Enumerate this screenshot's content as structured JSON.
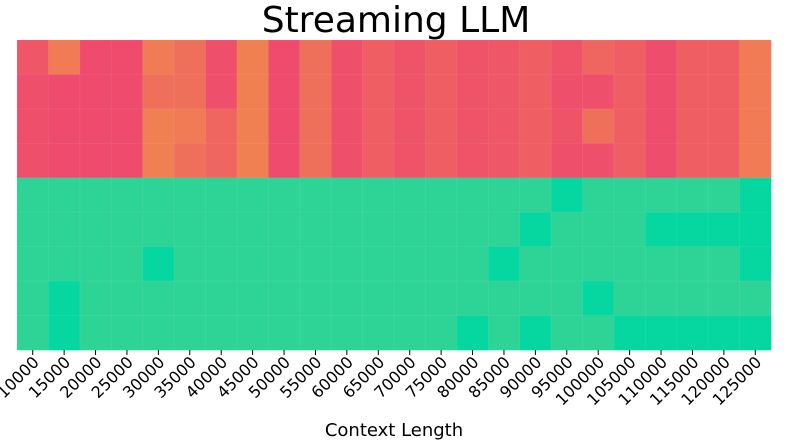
{
  "chart_data": {
    "type": "heatmap",
    "title": "Streaming LLM",
    "xlabel": "Context Length",
    "x": [
      "10000",
      "15000",
      "20000",
      "25000",
      "30000",
      "35000",
      "40000",
      "45000",
      "50000",
      "55000",
      "60000",
      "65000",
      "70000",
      "75000",
      "80000",
      "85000",
      "90000",
      "95000",
      "100000",
      "105000",
      "110000",
      "115000",
      "120000",
      "125000"
    ],
    "colorscale": [
      [
        0,
        "#ee4470"
      ],
      [
        0.3,
        "#f0864f"
      ],
      [
        0.7,
        "#2ed396"
      ],
      [
        1,
        "#06d6a0"
      ]
    ],
    "z": [
      [
        0.08,
        0.25,
        0.03,
        0.03,
        0.25,
        0.2,
        0.05,
        0.27,
        0.03,
        0.2,
        0.05,
        0.12,
        0.07,
        0.12,
        0.07,
        0.08,
        0.12,
        0.07,
        0.15,
        0.12,
        0.04,
        0.12,
        0.12,
        0.25
      ],
      [
        0.05,
        0.03,
        0.03,
        0.03,
        0.2,
        0.2,
        0.05,
        0.27,
        0.03,
        0.2,
        0.05,
        0.12,
        0.07,
        0.12,
        0.07,
        0.08,
        0.12,
        0.05,
        0.05,
        0.12,
        0.04,
        0.12,
        0.12,
        0.25
      ],
      [
        0.05,
        0.03,
        0.03,
        0.03,
        0.27,
        0.25,
        0.15,
        0.27,
        0.03,
        0.2,
        0.05,
        0.12,
        0.07,
        0.12,
        0.07,
        0.08,
        0.12,
        0.07,
        0.2,
        0.12,
        0.04,
        0.12,
        0.12,
        0.25
      ],
      [
        0.05,
        0.03,
        0.03,
        0.03,
        0.27,
        0.2,
        0.15,
        0.27,
        0.03,
        0.2,
        0.05,
        0.12,
        0.07,
        0.12,
        0.07,
        0.08,
        0.12,
        0.05,
        0.05,
        0.12,
        0.04,
        0.12,
        0.12,
        0.25
      ],
      [
        0.7,
        0.7,
        0.7,
        0.7,
        0.7,
        0.7,
        0.7,
        0.7,
        0.7,
        0.7,
        0.7,
        0.7,
        0.7,
        0.7,
        0.7,
        0.7,
        0.7,
        1,
        0.7,
        0.7,
        0.7,
        0.7,
        0.7,
        1
      ],
      [
        0.7,
        0.7,
        0.7,
        0.7,
        0.7,
        0.7,
        0.7,
        0.7,
        0.7,
        0.7,
        0.7,
        0.7,
        0.7,
        0.7,
        0.7,
        0.7,
        1,
        0.7,
        0.7,
        0.7,
        1,
        1,
        1,
        1
      ],
      [
        0.7,
        0.7,
        0.7,
        0.7,
        1,
        0.7,
        0.7,
        0.7,
        0.7,
        0.7,
        0.7,
        0.7,
        0.7,
        0.7,
        0.7,
        1,
        0.7,
        0.7,
        0.7,
        0.7,
        0.7,
        0.7,
        0.7,
        1
      ],
      [
        0.7,
        1,
        0.7,
        0.7,
        0.7,
        0.7,
        0.7,
        0.7,
        0.7,
        0.7,
        0.7,
        0.7,
        0.7,
        0.7,
        0.7,
        0.7,
        0.7,
        0.7,
        1,
        0.7,
        0.7,
        0.7,
        0.7,
        0.7
      ],
      [
        0.7,
        1,
        0.7,
        0.7,
        0.7,
        0.7,
        0.7,
        0.7,
        0.7,
        0.7,
        0.7,
        0.7,
        0.7,
        0.7,
        1,
        0.7,
        1,
        0.7,
        0.7,
        1,
        1,
        1,
        1,
        1
      ]
    ]
  }
}
